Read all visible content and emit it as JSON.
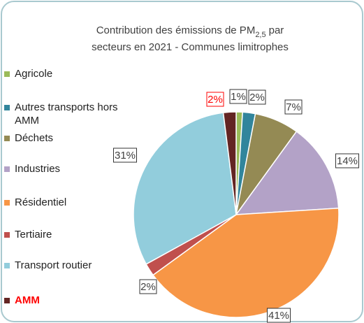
{
  "chart_data": {
    "type": "pie",
    "title": {
      "line1": "Contribution des émissions de PM",
      "subscript": "2,5",
      "line1_end": "par",
      "line2": "secteurs en 2021 - Communes limitrophes"
    },
    "categories": [
      "Agricole",
      "Autres transports hors AMM",
      "Déchets",
      "Industries",
      "Résidentiel",
      "Tertiaire",
      "Transport routier",
      "AMM"
    ],
    "values": [
      1,
      2,
      7,
      14,
      41,
      2,
      31,
      2
    ],
    "value_labels": [
      "1%",
      "2%",
      "7%",
      "14%",
      "41%",
      "2%",
      "31%",
      "2%"
    ],
    "colors": [
      "#9bbb59",
      "#31859c",
      "#948a54",
      "#b3a2c7",
      "#f79646",
      "#c0504d",
      "#92cddc",
      "#632523"
    ],
    "highlight": "AMM",
    "highlight_color": "#ff0000"
  }
}
